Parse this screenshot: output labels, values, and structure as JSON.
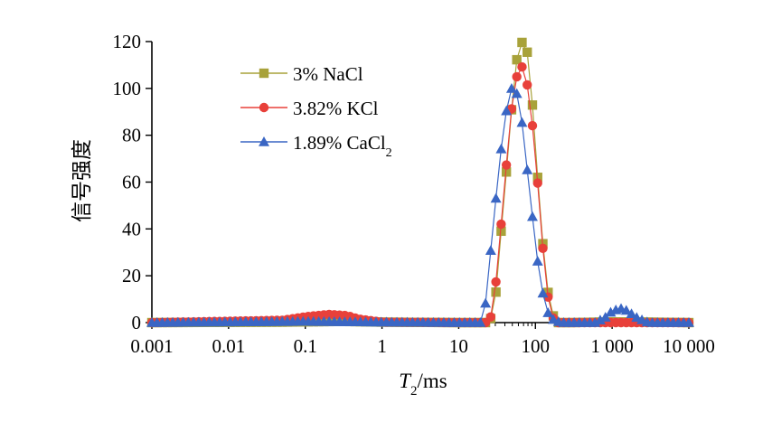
{
  "chart_data": {
    "type": "line",
    "xlabel": "T2/ms",
    "ylabel": "信号强度",
    "x_scale": "log",
    "xlim": [
      0.001,
      10000
    ],
    "ylim": [
      0,
      120
    ],
    "x_ticks": [
      0.001,
      0.01,
      0.1,
      1,
      10,
      100,
      1000,
      10000
    ],
    "x_tick_labels": [
      "0.001",
      "0.01",
      "0.1",
      "1",
      "10",
      "100",
      "1 000",
      "10 000"
    ],
    "y_ticks": [
      0,
      20,
      40,
      60,
      80,
      100,
      120
    ],
    "y_tick_labels": [
      "0",
      "20",
      "40",
      "60",
      "80",
      "100",
      "120"
    ],
    "grid": false,
    "legend_position": "top-left",
    "series": [
      {
        "name": "3% NaCl",
        "color": "#a8a23a",
        "marker": "square",
        "points": [
          [
            0.001,
            0
          ],
          [
            0.05,
            0.2
          ],
          [
            0.3,
            0.5
          ],
          [
            1,
            0.2
          ],
          [
            10,
            0
          ],
          [
            25,
            0
          ],
          [
            27,
            3
          ],
          [
            30,
            10
          ],
          [
            33,
            25
          ],
          [
            37,
            45
          ],
          [
            42,
            65
          ],
          [
            47,
            85
          ],
          [
            52,
            100
          ],
          [
            57,
            112
          ],
          [
            62,
            118
          ],
          [
            68,
            120
          ],
          [
            74,
            119
          ],
          [
            80,
            114
          ],
          [
            88,
            100
          ],
          [
            97,
            82
          ],
          [
            108,
            60
          ],
          [
            120,
            40
          ],
          [
            135,
            22
          ],
          [
            150,
            10
          ],
          [
            170,
            3
          ],
          [
            195,
            0
          ],
          [
            300,
            0
          ],
          [
            1000,
            0.3
          ],
          [
            3000,
            0.2
          ],
          [
            10000,
            0
          ]
        ]
      },
      {
        "name": "3.82% KCl",
        "color": "#e8403a",
        "marker": "circle",
        "points": [
          [
            0.001,
            0
          ],
          [
            0.05,
            1
          ],
          [
            0.1,
            2.5
          ],
          [
            0.2,
            3.5
          ],
          [
            0.35,
            3
          ],
          [
            0.5,
            1.5
          ],
          [
            1,
            0.2
          ],
          [
            10,
            0
          ],
          [
            24,
            0
          ],
          [
            26,
            2
          ],
          [
            29,
            10
          ],
          [
            33,
            28
          ],
          [
            37,
            48
          ],
          [
            42,
            68
          ],
          [
            47,
            87
          ],
          [
            53,
            100
          ],
          [
            59,
            107
          ],
          [
            65,
            110
          ],
          [
            72,
            107
          ],
          [
            80,
            100
          ],
          [
            88,
            90
          ],
          [
            97,
            75
          ],
          [
            108,
            58
          ],
          [
            120,
            38
          ],
          [
            135,
            20
          ],
          [
            150,
            8
          ],
          [
            170,
            2
          ],
          [
            200,
            0
          ],
          [
            10000,
            0
          ]
        ]
      },
      {
        "name": "1.89% CaCl2",
        "color": "#3a66c4",
        "marker": "triangle",
        "points": [
          [
            0.001,
            0
          ],
          [
            0.1,
            0.5
          ],
          [
            1,
            0.2
          ],
          [
            10,
            0
          ],
          [
            20,
            0
          ],
          [
            22,
            6
          ],
          [
            24,
            18
          ],
          [
            26,
            30
          ],
          [
            29,
            45
          ],
          [
            32,
            60
          ],
          [
            36,
            75
          ],
          [
            40,
            87
          ],
          [
            45,
            96
          ],
          [
            50,
            101
          ],
          [
            55,
            100
          ],
          [
            60,
            95
          ],
          [
            66,
            87
          ],
          [
            73,
            75
          ],
          [
            80,
            62
          ],
          [
            88,
            50
          ],
          [
            97,
            38
          ],
          [
            108,
            25
          ],
          [
            120,
            15
          ],
          [
            135,
            8
          ],
          [
            150,
            3
          ],
          [
            175,
            1
          ],
          [
            220,
            0
          ],
          [
            600,
            0
          ],
          [
            800,
            2
          ],
          [
            1000,
            5
          ],
          [
            1300,
            6
          ],
          [
            1600,
            5
          ],
          [
            2000,
            2.5
          ],
          [
            2500,
            1
          ],
          [
            3000,
            0
          ],
          [
            10000,
            0
          ]
        ]
      }
    ]
  }
}
